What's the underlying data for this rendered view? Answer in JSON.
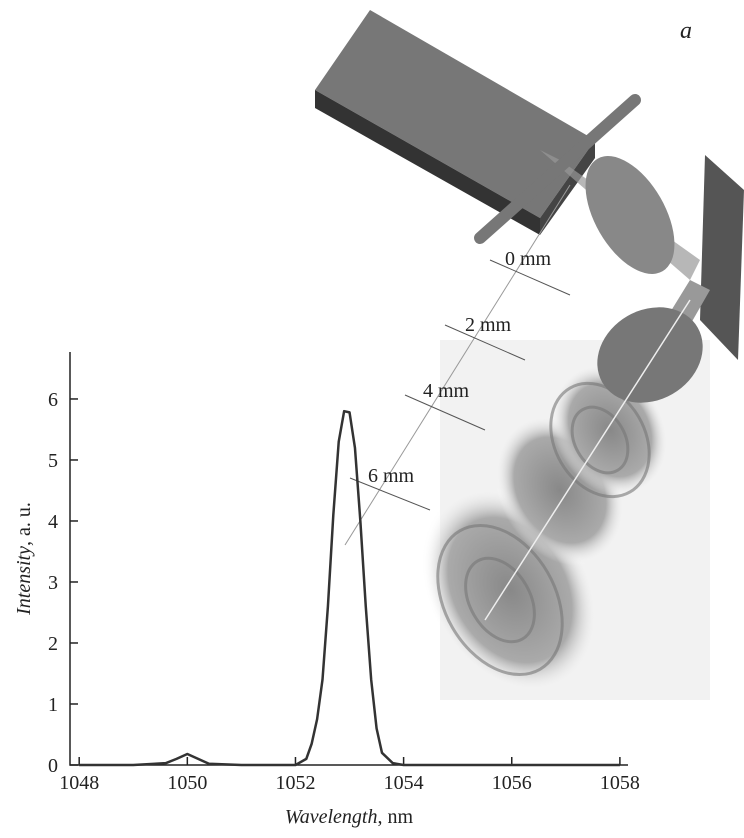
{
  "panel_label": "a",
  "distance_labels": [
    "0 mm",
    "2 mm",
    "4 mm",
    "6 mm"
  ],
  "chart_data": {
    "type": "line",
    "x_label": [
      "Wavelength",
      ", nm"
    ],
    "y_label": [
      "Intensity",
      ", a. u."
    ],
    "xlim": [
      1047.83,
      1058.15
    ],
    "ylim": [
      0,
      6.77
    ],
    "xticks": [
      1048,
      1050,
      1052,
      1054,
      1056,
      1058
    ],
    "yticks": [
      0,
      1,
      2,
      3,
      4,
      5,
      6
    ],
    "series": [
      {
        "color": "#333333",
        "x": [
          1048,
          1049,
          1049.6,
          1049.8,
          1050,
          1050.2,
          1050.4,
          1051,
          1052,
          1052.2,
          1052.3,
          1052.4,
          1052.5,
          1052.6,
          1052.7,
          1052.8,
          1052.9,
          1053.0,
          1053.1,
          1053.2,
          1053.3,
          1053.4,
          1053.5,
          1053.6,
          1053.8,
          1054,
          1055,
          1056,
          1057,
          1058
        ],
        "values": [
          0,
          0,
          0.03,
          0.1,
          0.18,
          0.1,
          0.02,
          0,
          0,
          0.1,
          0.35,
          0.75,
          1.4,
          2.6,
          4.1,
          5.3,
          5.8,
          5.78,
          5.2,
          4.0,
          2.6,
          1.4,
          0.6,
          0.2,
          0.03,
          0,
          0,
          0,
          0,
          0
        ]
      }
    ]
  }
}
